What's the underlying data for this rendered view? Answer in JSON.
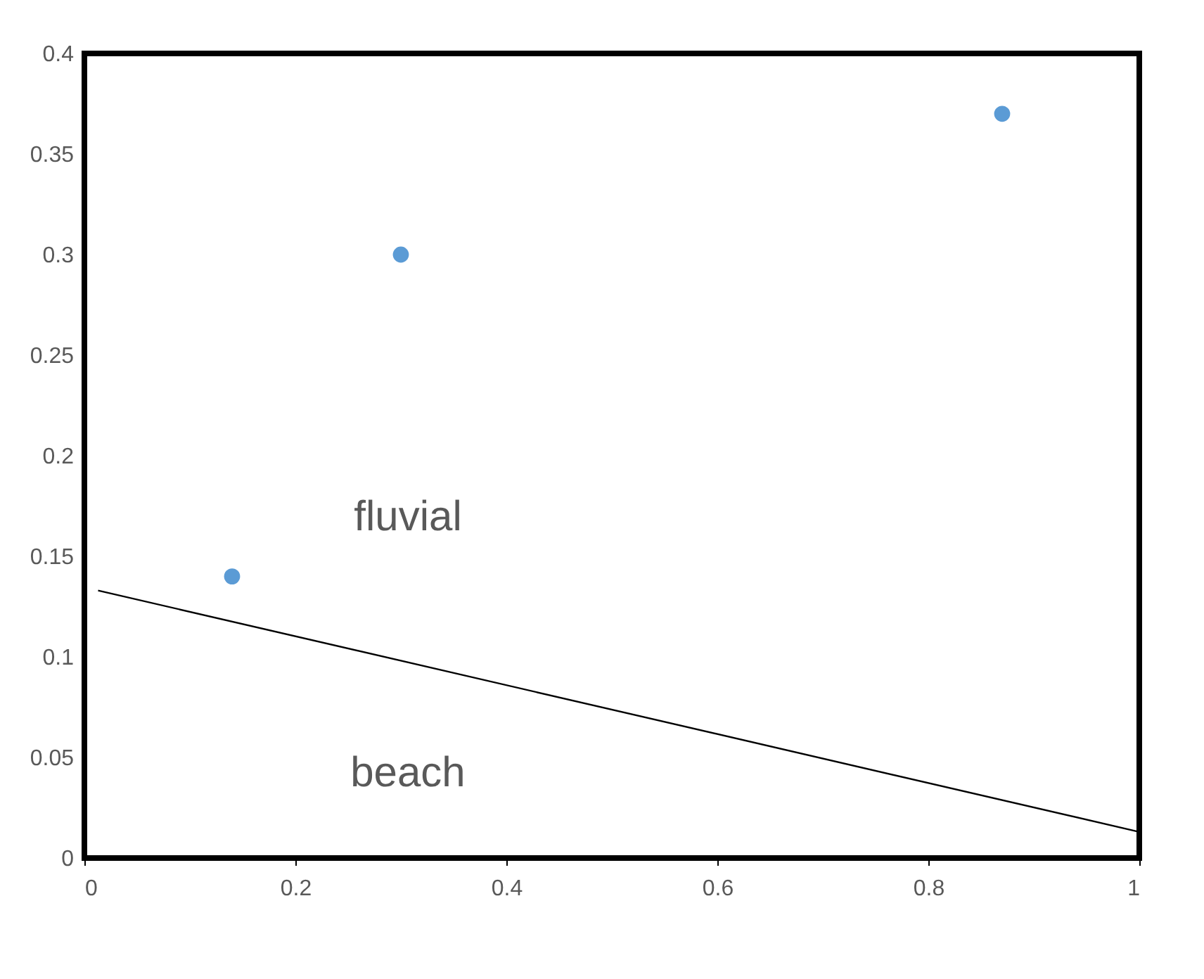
{
  "chart_data": {
    "type": "scatter",
    "series": [
      {
        "type": "scatter",
        "color": "#5b9bd5",
        "x": [
          0.14,
          0.3,
          0.87
        ],
        "values": [
          0.14,
          0.3,
          0.37
        ],
        "marker": "circle"
      },
      {
        "type": "line",
        "color": "#000000",
        "x": [
          0.013,
          1.0
        ],
        "values": [
          0.133,
          0.013
        ],
        "marker": "none",
        "line_style": "solid"
      }
    ],
    "xlim": [
      0,
      1
    ],
    "xticks": [
      0,
      0.2,
      0.4,
      0.6,
      0.8,
      1
    ],
    "ylim": [
      0,
      0.4
    ],
    "yticks": [
      0,
      0.05,
      0.1,
      0.15,
      0.2,
      0.25,
      0.3,
      0.35,
      0.4
    ],
    "annotations": [
      "fluvial",
      "beach"
    ],
    "grid": false
  }
}
